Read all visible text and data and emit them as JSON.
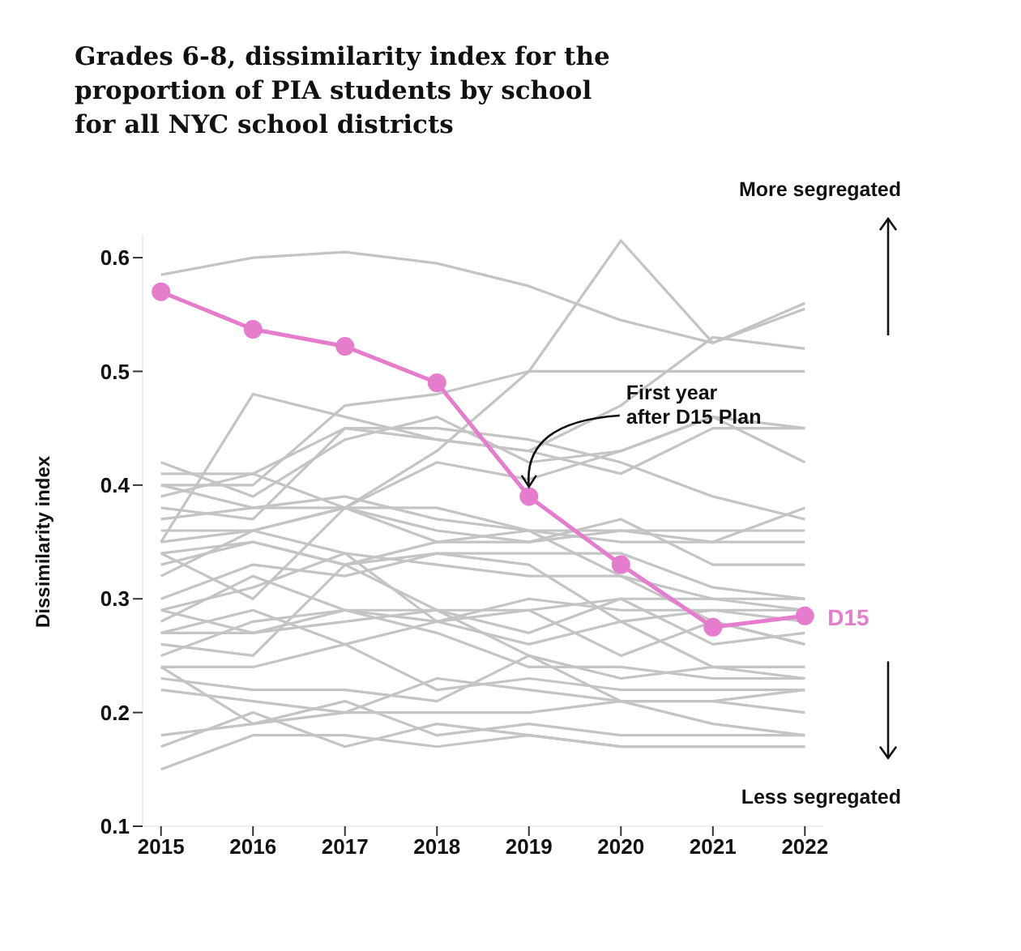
{
  "chart_data": {
    "type": "line",
    "title": "Grades 6-8, dissimilarity index for the proportion of PIA students by school for all NYC school districts",
    "ylabel": "Dissimilarity index",
    "x": [
      2015,
      2016,
      2017,
      2018,
      2019,
      2020,
      2021,
      2022
    ],
    "xlim": [
      2014.8,
      2022.2
    ],
    "xticks": [
      2015,
      2016,
      2017,
      2018,
      2019,
      2020,
      2021,
      2022
    ],
    "ylim": [
      0.1,
      0.62
    ],
    "yticks": [
      0.1,
      0.2,
      0.3,
      0.4,
      0.5,
      0.6
    ],
    "grid": false,
    "legend": false,
    "marker": "none",
    "line_style": "solid",
    "annotations": [
      "More segregated",
      "Less segregated",
      {
        "text": "First year after D15 Plan",
        "x": 2019,
        "y": 0.39
      }
    ],
    "series": [
      {
        "color": "#c4c4c4",
        "values": [
          0.585,
          0.6,
          0.605,
          0.595,
          0.575,
          0.545,
          0.525,
          0.555
        ]
      },
      {
        "color": "#c4c4c4",
        "values": [
          0.36,
          0.36,
          0.38,
          0.43,
          0.5,
          0.615,
          0.525,
          0.56
        ]
      },
      {
        "color": "#c4c4c4",
        "values": [
          0.35,
          0.48,
          0.46,
          0.44,
          0.43,
          0.47,
          0.53,
          0.52
        ]
      },
      {
        "color": "#c4c4c4",
        "values": [
          0.4,
          0.4,
          0.47,
          0.48,
          0.5,
          0.5,
          0.5,
          0.5
        ]
      },
      {
        "color": "#c4c4c4",
        "values": [
          0.42,
          0.39,
          0.44,
          0.46,
          0.42,
          0.43,
          0.46,
          0.45
        ]
      },
      {
        "color": "#c4c4c4",
        "values": [
          0.38,
          0.37,
          0.45,
          0.44,
          0.43,
          0.41,
          0.45,
          0.45
        ]
      },
      {
        "color": "#c4c4c4",
        "values": [
          0.41,
          0.41,
          0.45,
          0.45,
          0.44,
          0.42,
          0.39,
          0.37
        ]
      },
      {
        "color": "#c4c4c4",
        "values": [
          0.39,
          0.41,
          0.38,
          0.42,
          0.405,
          0.43,
          0.46,
          0.42
        ]
      },
      {
        "color": "#c4c4c4",
        "values": [
          0.4,
          0.38,
          0.38,
          0.38,
          0.36,
          0.35,
          0.35,
          0.38
        ]
      },
      {
        "color": "#c4c4c4",
        "values": [
          0.37,
          0.38,
          0.39,
          0.37,
          0.36,
          0.36,
          0.36,
          0.36
        ]
      },
      {
        "color": "#c4c4c4",
        "values": [
          0.35,
          0.36,
          0.38,
          0.36,
          0.35,
          0.36,
          0.35,
          0.35
        ]
      },
      {
        "color": "#c4c4c4",
        "values": [
          0.34,
          0.35,
          0.33,
          0.35,
          0.35,
          0.37,
          0.33,
          0.33
        ]
      },
      {
        "color": "#c4c4c4",
        "values": [
          0.33,
          0.35,
          0.33,
          0.34,
          0.34,
          0.34,
          0.31,
          0.3
        ]
      },
      {
        "color": "#c4c4c4",
        "values": [
          0.32,
          0.36,
          0.34,
          0.33,
          0.32,
          0.32,
          0.3,
          0.29
        ]
      },
      {
        "color": "#c4c4c4",
        "values": [
          0.3,
          0.33,
          0.32,
          0.34,
          0.33,
          0.28,
          0.29,
          0.29
        ]
      },
      {
        "color": "#c4c4c4",
        "values": [
          0.29,
          0.31,
          0.34,
          0.28,
          0.3,
          0.29,
          0.29,
          0.28
        ]
      },
      {
        "color": "#c4c4c4",
        "values": [
          0.28,
          0.32,
          0.29,
          0.28,
          0.29,
          0.25,
          0.28,
          0.26
        ]
      },
      {
        "color": "#c4c4c4",
        "values": [
          0.29,
          0.27,
          0.28,
          0.29,
          0.27,
          0.3,
          0.26,
          0.27
        ]
      },
      {
        "color": "#c4c4c4",
        "values": [
          0.27,
          0.29,
          0.26,
          0.28,
          0.26,
          0.28,
          0.24,
          0.24
        ]
      },
      {
        "color": "#c4c4c4",
        "values": [
          0.26,
          0.25,
          0.33,
          0.29,
          0.25,
          0.23,
          0.24,
          0.23
        ]
      },
      {
        "color": "#c4c4c4",
        "values": [
          0.25,
          0.28,
          0.29,
          0.27,
          0.24,
          0.24,
          0.23,
          0.23
        ]
      },
      {
        "color": "#c4c4c4",
        "values": [
          0.24,
          0.24,
          0.26,
          0.22,
          0.23,
          0.22,
          0.22,
          0.22
        ]
      },
      {
        "color": "#c4c4c4",
        "values": [
          0.23,
          0.22,
          0.22,
          0.21,
          0.25,
          0.21,
          0.21,
          0.22
        ]
      },
      {
        "color": "#c4c4c4",
        "values": [
          0.22,
          0.21,
          0.2,
          0.23,
          0.22,
          0.21,
          0.21,
          0.2
        ]
      },
      {
        "color": "#c4c4c4",
        "values": [
          0.24,
          0.19,
          0.2,
          0.2,
          0.2,
          0.21,
          0.19,
          0.18
        ]
      },
      {
        "color": "#c4c4c4",
        "values": [
          0.18,
          0.19,
          0.21,
          0.18,
          0.19,
          0.18,
          0.18,
          0.18
        ]
      },
      {
        "color": "#c4c4c4",
        "values": [
          0.17,
          0.2,
          0.17,
          0.19,
          0.18,
          0.17,
          0.17,
          0.17
        ]
      },
      {
        "color": "#c4c4c4",
        "values": [
          0.15,
          0.18,
          0.18,
          0.17,
          0.18,
          0.17,
          0.17,
          0.17
        ]
      },
      {
        "color": "#c4c4c4",
        "values": [
          0.27,
          0.27,
          0.29,
          0.29,
          0.29,
          0.3,
          0.3,
          0.3
        ]
      },
      {
        "color": "#c4c4c4",
        "values": [
          0.34,
          0.3,
          0.38,
          0.35,
          0.36,
          0.32,
          0.28,
          0.26
        ]
      },
      {
        "name": "D15",
        "color": "#e57ccc",
        "marker": "circle",
        "values": [
          0.57,
          0.537,
          0.522,
          0.49,
          0.39,
          0.33,
          0.275,
          0.285
        ]
      }
    ]
  }
}
